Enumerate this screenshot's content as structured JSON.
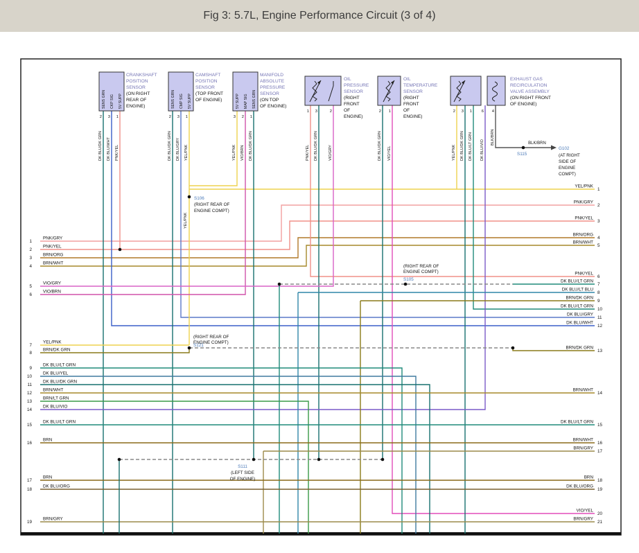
{
  "header": {
    "title": "Fig 3: 5.7L, Engine Performance Circuit (3 of 4)"
  },
  "components": [
    {
      "name_lines": [
        "CRANKSHAFT",
        "POSITION",
        "SENSOR"
      ],
      "location_lines": [
        "(ON RIGHT",
        "REAR OF",
        "ENGINE)"
      ],
      "pins": [
        "SENS GRN",
        "CKP SIG",
        "5V SUPP"
      ],
      "pin_numbers": [
        "2",
        "3",
        "1"
      ],
      "wire_labels": [
        "DK BLU/DK GRN",
        "DK BLU/WHT",
        "PNK/YEL"
      ]
    },
    {
      "name_lines": [
        "CAMSHAFT",
        "POSITION",
        "SENSOR"
      ],
      "location_lines": [
        "(TOP FRONT",
        "OF ENGINE)"
      ],
      "pins": [
        "SENS GRN",
        "CMP SIG",
        "5V SUPP"
      ],
      "pin_numbers": [
        "2",
        "3",
        "1"
      ],
      "wire_labels": [
        "DK BLU/DK GRN",
        "DK BLU/GRY",
        "YEL/PNK"
      ]
    },
    {
      "name_lines": [
        "MANIFOLD",
        "ABSOLUTE",
        "PRESSURE",
        "SENSOR"
      ],
      "location_lines": [
        "(ON TOP",
        "OF ENGINE)"
      ],
      "pins": [
        "5V SUPP",
        "MAP SIG",
        "SENS GRN"
      ],
      "pin_numbers": [
        "3",
        "2",
        "1"
      ],
      "wire_labels": [
        "YEL/PNK",
        "VIO/BRN",
        "DK BLU/DK GRN"
      ]
    },
    {
      "name_lines": [
        "OIL",
        "PRESSURE",
        "SENSOR"
      ],
      "location_lines": [
        "(RIGHT",
        "FRONT",
        "OF",
        "ENGINE)"
      ],
      "pins": [],
      "pin_numbers": [
        "1",
        "3",
        "2"
      ],
      "wire_labels": [
        "PNK/YEL",
        "DK BLU/DK GRN",
        "VIO/GRY"
      ]
    },
    {
      "name_lines": [
        "OIL",
        "TEMPERATURE",
        "SENSOR"
      ],
      "location_lines": [
        "(RIGHT",
        "FRONT",
        "OF",
        "ENGINE)"
      ],
      "pins": [],
      "pin_numbers": [
        "2",
        "1"
      ],
      "wire_labels": [
        "DK BLU/DK GRN",
        "VIO/YEL"
      ]
    },
    {
      "name_lines": [
        "EXHAUST GAS",
        "RECIRCULATION",
        "VALVE ASSEMBLY"
      ],
      "location_lines": [
        "(ON RIGHT FRONT",
        "OF ENGINE)"
      ],
      "pins": [],
      "pin_numbers": [
        "2",
        "3",
        "1",
        "6",
        "4"
      ],
      "wire_labels": [
        "YEL/PNK",
        "DK BLU/DK GRN",
        "DK BLU/LT GRN",
        "DK BLU/VIO",
        "BLK/BRN"
      ]
    }
  ],
  "left_terminals": [
    {
      "n": "1",
      "label": "PNK/GRY"
    },
    {
      "n": "2",
      "label": "PNK/YEL"
    },
    {
      "n": "3",
      "label": "BRN/ORG"
    },
    {
      "n": "4",
      "label": "BRN/WHT"
    },
    {
      "n": "5",
      "label": "VIO/GRY"
    },
    {
      "n": "6",
      "label": "VIO/BRN"
    },
    {
      "n": "7",
      "label": "YEL/PNK"
    },
    {
      "n": "8",
      "label": "BRN/DK GRN"
    },
    {
      "n": "9",
      "label": "DK BLU/LT GRN"
    },
    {
      "n": "10",
      "label": "DK BLU/YEL"
    },
    {
      "n": "11",
      "label": "DK BLU/DK GRN"
    },
    {
      "n": "12",
      "label": "BRN/WHT"
    },
    {
      "n": "13",
      "label": "BRN/LT GRN"
    },
    {
      "n": "14",
      "label": "DK BLU/VIO"
    },
    {
      "n": "15",
      "label": "DK BLU/LT GRN"
    },
    {
      "n": "16",
      "label": "BRN"
    },
    {
      "n": "17",
      "label": "BRN"
    },
    {
      "n": "18",
      "label": "DK BLU/ORG"
    },
    {
      "n": "19",
      "label": "BRN/GRY"
    }
  ],
  "right_terminals": [
    {
      "n": "1",
      "label": "YEL/PNK"
    },
    {
      "n": "2",
      "label": "PNK/GRY"
    },
    {
      "n": "3",
      "label": "PNK/YEL"
    },
    {
      "n": "4",
      "label": "BRN/ORG"
    },
    {
      "n": "5",
      "label": "BRN/WHT"
    },
    {
      "n": "6",
      "label": "PNK/YEL"
    },
    {
      "n": "7",
      "label": "DK BLU/LT GRN"
    },
    {
      "n": "8",
      "label": "DK BLU/LT BLU"
    },
    {
      "n": "9",
      "label": "BRN/DK GRN"
    },
    {
      "n": "10",
      "label": "DK BLU/LT GRN"
    },
    {
      "n": "11",
      "label": "DK BLU/GRY"
    },
    {
      "n": "12",
      "label": "DK BLU/WHT"
    },
    {
      "n": "13",
      "label": "BRN/DK GRN"
    },
    {
      "n": "14",
      "label": "BRN/WHT"
    },
    {
      "n": "15",
      "label": "DK BLU/LT GRN"
    },
    {
      "n": "16",
      "label": "BRN/WHT"
    },
    {
      "n": "17",
      "label": "BRN/GRY"
    },
    {
      "n": "18",
      "label": "BRN"
    },
    {
      "n": "19",
      "label": "DK BLU/ORG"
    },
    {
      "n": "20",
      "label": "VIO/YEL"
    },
    {
      "n": "21",
      "label": "BRN/GRY"
    }
  ],
  "splices": {
    "s106": {
      "name": "S106",
      "location_lines": [
        "(RIGHT REAR OF",
        "ENGINE COMPT)"
      ]
    },
    "s105": {
      "name": "S105",
      "location_lines": [
        "(RIGHT REAR OF",
        "ENGINE COMPT)"
      ]
    },
    "s121": {
      "name": "S121",
      "location_lines": [
        "(RIGHT REAR OF",
        "ENGINE COMPT)"
      ]
    },
    "s111": {
      "name": "S111",
      "location_lines": [
        "(LEFT SIDE",
        "OF ENGINE)"
      ]
    },
    "s115": {
      "name": "S115"
    },
    "g102": {
      "name": "G102",
      "location_lines": [
        "(AT RIGHT",
        "SIDE OF",
        "ENGINE",
        "COMPT)"
      ],
      "wire_label": "BLK/BRN"
    }
  },
  "misc": {
    "yel_pnk_vertical": "YEL/PNK"
  },
  "colors": {
    "header_bg": "#d8d4ca",
    "title_text": "#3c3c3c",
    "component_fill": "#c9c9ef",
    "component_stroke": "#333333",
    "component_name_text": "#7575b5",
    "splice_text": "#4878b8",
    "label_text": "#111111",
    "wires": {
      "pnk_gry": "#f2a0a0",
      "pnk_yel": "#f09088",
      "yel_pnk": "#eed24e",
      "brn_org": "#b07828",
      "brn_wht": "#a5882a",
      "brn": "#8a6a18",
      "brn_gry": "#9c8a4a",
      "brn_dkgrn": "#8a7a18",
      "brn_ltgrn": "#3a9a48",
      "vio_gry": "#d862c6",
      "vio_brn": "#d052aa",
      "vio_yel": "#e24cba",
      "dkblu_dkgrn": "#17706e",
      "dkblu_ltgrn": "#1f8a7a",
      "dkblu_ltblu": "#2f86a8",
      "dkblu_wht": "#3a5fc8",
      "dkblu_gry": "#5a78c8",
      "dkblu_yel": "#3f7a9f",
      "dkblu_vio": "#7a5ac8",
      "dkblu_org": "#7a6030",
      "blk_brn": "#555555",
      "dashed": "#888888"
    }
  }
}
